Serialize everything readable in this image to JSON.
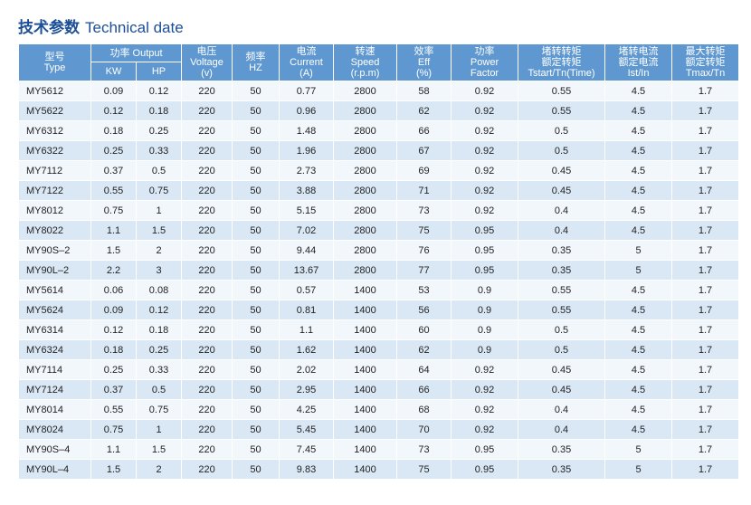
{
  "title": {
    "cn": "技术参数",
    "en": "Technical date"
  },
  "headers": {
    "type": {
      "cn": "型号",
      "en": "Type"
    },
    "output": {
      "label": "功率 Output",
      "kw": "KW",
      "hp": "HP"
    },
    "voltage": {
      "cn": "电压",
      "en": "Voltage",
      "unit": "(v)"
    },
    "frequency": {
      "cn": "频率",
      "en": "HZ"
    },
    "current": {
      "cn": "电流",
      "en": "Current",
      "unit": "(A)"
    },
    "speed": {
      "cn": "转速",
      "en": "Speed",
      "unit": "(r.p.m)"
    },
    "eff": {
      "cn": "效率",
      "en": "Eff",
      "unit": "(%)"
    },
    "power_factor": {
      "cn": "功率",
      "en": "Power",
      "unit": "Factor"
    },
    "start_torque": {
      "cn": "堵转转矩",
      "en": "额定转矩",
      "unit": "Tstart/Tn(Time)"
    },
    "start_current": {
      "cn": "堵转电流",
      "en": "额定电流",
      "unit": "Ist/In"
    },
    "max_torque": {
      "cn": "最大转矩",
      "en": "额定转矩",
      "unit": "Tmax/Tn"
    }
  },
  "rows": [
    [
      "MY5612",
      "0.09",
      "0.12",
      "220",
      "50",
      "0.77",
      "2800",
      "58",
      "0.92",
      "0.55",
      "4.5",
      "1.7"
    ],
    [
      "MY5622",
      "0.12",
      "0.18",
      "220",
      "50",
      "0.96",
      "2800",
      "62",
      "0.92",
      "0.55",
      "4.5",
      "1.7"
    ],
    [
      "MY6312",
      "0.18",
      "0.25",
      "220",
      "50",
      "1.48",
      "2800",
      "66",
      "0.92",
      "0.5",
      "4.5",
      "1.7"
    ],
    [
      "MY6322",
      "0.25",
      "0.33",
      "220",
      "50",
      "1.96",
      "2800",
      "67",
      "0.92",
      "0.5",
      "4.5",
      "1.7"
    ],
    [
      "MY7112",
      "0.37",
      "0.5",
      "220",
      "50",
      "2.73",
      "2800",
      "69",
      "0.92",
      "0.45",
      "4.5",
      "1.7"
    ],
    [
      "MY7122",
      "0.55",
      "0.75",
      "220",
      "50",
      "3.88",
      "2800",
      "71",
      "0.92",
      "0.45",
      "4.5",
      "1.7"
    ],
    [
      "MY8012",
      "0.75",
      "1",
      "220",
      "50",
      "5.15",
      "2800",
      "73",
      "0.92",
      "0.4",
      "4.5",
      "1.7"
    ],
    [
      "MY8022",
      "1.1",
      "1.5",
      "220",
      "50",
      "7.02",
      "2800",
      "75",
      "0.95",
      "0.4",
      "4.5",
      "1.7"
    ],
    [
      "MY90S–2",
      "1.5",
      "2",
      "220",
      "50",
      "9.44",
      "2800",
      "76",
      "0.95",
      "0.35",
      "5",
      "1.7"
    ],
    [
      "MY90L–2",
      "2.2",
      "3",
      "220",
      "50",
      "13.67",
      "2800",
      "77",
      "0.95",
      "0.35",
      "5",
      "1.7"
    ],
    [
      "MY5614",
      "0.06",
      "0.08",
      "220",
      "50",
      "0.57",
      "1400",
      "53",
      "0.9",
      "0.55",
      "4.5",
      "1.7"
    ],
    [
      "MY5624",
      "0.09",
      "0.12",
      "220",
      "50",
      "0.81",
      "1400",
      "56",
      "0.9",
      "0.55",
      "4.5",
      "1.7"
    ],
    [
      "MY6314",
      "0.12",
      "0.18",
      "220",
      "50",
      "1.1",
      "1400",
      "60",
      "0.9",
      "0.5",
      "4.5",
      "1.7"
    ],
    [
      "MY6324",
      "0.18",
      "0.25",
      "220",
      "50",
      "1.62",
      "1400",
      "62",
      "0.9",
      "0.5",
      "4.5",
      "1.7"
    ],
    [
      "MY7114",
      "0.25",
      "0.33",
      "220",
      "50",
      "2.02",
      "1400",
      "64",
      "0.92",
      "0.45",
      "4.5",
      "1.7"
    ],
    [
      "MY7124",
      "0.37",
      "0.5",
      "220",
      "50",
      "2.95",
      "1400",
      "66",
      "0.92",
      "0.45",
      "4.5",
      "1.7"
    ],
    [
      "MY8014",
      "0.55",
      "0.75",
      "220",
      "50",
      "4.25",
      "1400",
      "68",
      "0.92",
      "0.4",
      "4.5",
      "1.7"
    ],
    [
      "MY8024",
      "0.75",
      "1",
      "220",
      "50",
      "5.45",
      "1400",
      "70",
      "0.92",
      "0.4",
      "4.5",
      "1.7"
    ],
    [
      "MY90S–4",
      "1.1",
      "1.5",
      "220",
      "50",
      "7.45",
      "1400",
      "73",
      "0.95",
      "0.35",
      "5",
      "1.7"
    ],
    [
      "MY90L–4",
      "1.5",
      "2",
      "220",
      "50",
      "9.83",
      "1400",
      "75",
      "0.95",
      "0.35",
      "5",
      "1.7"
    ]
  ],
  "colors": {
    "title": "#1c4f97",
    "header_bg": "#5f98d0",
    "row_light": "#f2f7fc",
    "row_dark": "#dae8f6"
  }
}
